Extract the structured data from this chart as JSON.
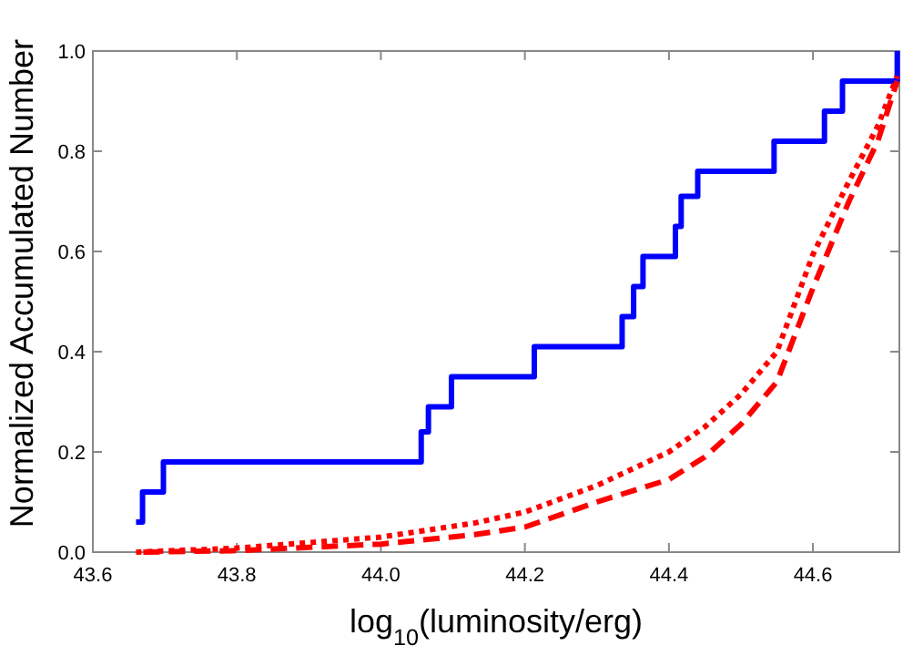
{
  "chart_data": {
    "type": "line",
    "xlabel": "log$_{10}$(luminosity/erg)",
    "ylabel": "Normalized Accumulated Number",
    "xlim": [
      43.6,
      44.72
    ],
    "xticks": [
      {
        "value": 43.6,
        "label": "43.6"
      },
      {
        "value": 43.8,
        "label": "43.8"
      },
      {
        "value": 44.0,
        "label": "44.0"
      },
      {
        "value": 44.2,
        "label": "44.2"
      },
      {
        "value": 44.4,
        "label": "44.4"
      },
      {
        "value": 44.6,
        "label": "44.6"
      }
    ],
    "ylim": [
      0,
      1
    ],
    "yticks": [
      {
        "value": 0,
        "label": "0.0"
      },
      {
        "value": 0.2,
        "label": "0.2"
      },
      {
        "value": 0.4,
        "label": "0.4"
      },
      {
        "value": 0.6,
        "label": "0.6"
      },
      {
        "value": 0.8,
        "label": "0.8"
      },
      {
        "value": 1,
        "label": "1.0"
      }
    ],
    "grid": false,
    "marker": "none",
    "series": [
      {
        "type": "step",
        "color": "#0000ff",
        "line_style": "solid",
        "x": [
          43.66,
          43.669,
          43.698,
          44.056,
          44.066,
          44.098,
          44.213,
          44.335,
          44.351,
          44.364,
          44.409,
          44.417,
          44.44,
          44.546,
          44.616,
          44.641,
          44.717
        ],
        "values": [
          0.06,
          0.12,
          0.18,
          0.24,
          0.29,
          0.35,
          0.41,
          0.47,
          0.53,
          0.59,
          0.65,
          0.71,
          0.76,
          0.82,
          0.88,
          0.94,
          1.0
        ]
      },
      {
        "color": "#ff0000",
        "line_style": "dotted",
        "x": [
          43.66,
          43.8,
          44.0,
          44.13,
          44.2,
          44.3,
          44.4,
          44.45,
          44.5,
          44.55,
          44.6,
          44.65,
          44.69,
          44.717
        ],
        "values": [
          0,
          0.008,
          0.03,
          0.058,
          0.08,
          0.133,
          0.2,
          0.25,
          0.315,
          0.4,
          0.594,
          0.74,
          0.85,
          0.95
        ]
      },
      {
        "color": "#ff0000",
        "line_style": "dashed",
        "x": [
          43.67,
          43.8,
          44.0,
          44.13,
          44.2,
          44.3,
          44.4,
          44.45,
          44.5,
          44.55,
          44.6,
          44.65,
          44.69,
          44.717
        ],
        "values": [
          0,
          0.003,
          0.016,
          0.035,
          0.05,
          0.1,
          0.145,
          0.19,
          0.255,
          0.34,
          0.527,
          0.7,
          0.82,
          0.94
        ]
      }
    ]
  }
}
